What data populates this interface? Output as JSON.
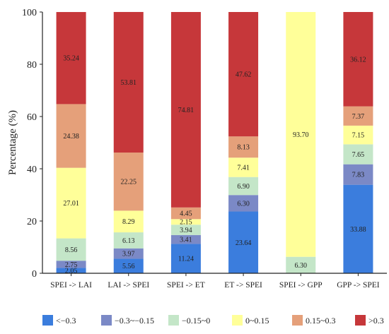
{
  "chart_data": {
    "type": "bar",
    "stacked": true,
    "ylabel": "Percentage (%)",
    "ylim": [
      0,
      100
    ],
    "yticks": [
      "0",
      "20",
      "40",
      "60",
      "80",
      "100"
    ],
    "categories": [
      "SPEI -> LAI",
      "LAI -> SPEI",
      "SPEI -> ET",
      "ET -> SPEI",
      "SPEI -> GPP",
      "GPP -> SPEI"
    ],
    "series": [
      {
        "name": "<-0.3",
        "color": "#3b7ddd",
        "values": [
          2.05,
          5.56,
          11.24,
          23.64,
          0,
          33.88
        ],
        "labels": [
          "2.05",
          "5.56",
          "11.24",
          "23.64",
          "",
          "33.88"
        ]
      },
      {
        "name": "-0.3~-0.15",
        "color": "#7b89c6",
        "values": [
          2.75,
          3.97,
          3.41,
          6.3,
          0,
          7.83
        ],
        "labels": [
          "2.75",
          "3.97",
          "3.41",
          "6.30",
          "",
          "7.83"
        ]
      },
      {
        "name": "-0.15~0",
        "color": "#c4e6c8",
        "values": [
          8.56,
          6.13,
          3.94,
          6.9,
          6.3,
          7.65
        ],
        "labels": [
          "8.56",
          "6.13",
          "3.94",
          "6.90",
          "6.30",
          "7.65"
        ]
      },
      {
        "name": "0~0.15",
        "color": "#ffff99",
        "values": [
          27.01,
          8.29,
          2.15,
          7.41,
          93.7,
          7.15
        ],
        "labels": [
          "27.01",
          "8.29",
          "2.15",
          "7.41",
          "93.70",
          "7.15"
        ]
      },
      {
        "name": "0.15~0.3",
        "color": "#e5a07a",
        "values": [
          24.38,
          22.25,
          4.45,
          8.13,
          0,
          7.37
        ],
        "labels": [
          "24.38",
          "22.25",
          "4.45",
          "8.13",
          "",
          "7.37"
        ]
      },
      {
        "name": ">0.3",
        "color": "#c6373a",
        "values": [
          35.24,
          53.81,
          74.81,
          47.62,
          0,
          36.12
        ],
        "labels": [
          "35.24",
          "53.81",
          "74.81",
          "47.62",
          "",
          "36.12"
        ]
      }
    ],
    "legend": {
      "position": "bottom",
      "labels": [
        "<−0.3",
        "−0.3~−0.15",
        "−0.15~0",
        "0~0.15",
        "0.15~0.3",
        ">0.3"
      ]
    }
  }
}
